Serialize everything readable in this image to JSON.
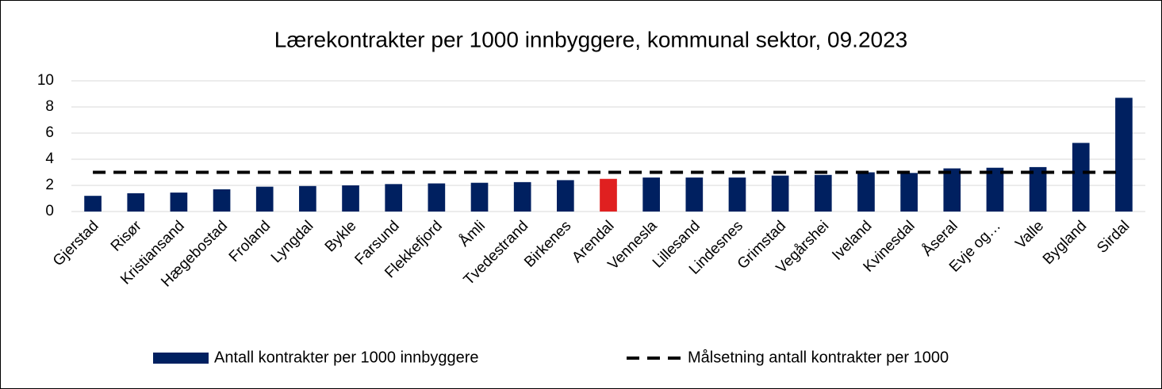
{
  "chart_data": {
    "type": "bar",
    "title": "Lærekontrakter per 1000 innbyggere, kommunal sektor, 09.2023",
    "categories": [
      "Gjerstad",
      "Risør",
      "Kristiansand",
      "Hægebostad",
      "Froland",
      "Lyngdal",
      "Bykle",
      "Farsund",
      "Flekkefjord",
      "Åmli",
      "Tvedestrand",
      "Birkenes",
      "Arendal",
      "Vennesla",
      "Lillesand",
      "Lindesnes",
      "Grimstad",
      "Vegårshei",
      "Iveland",
      "Kvinesdal",
      "Åseral",
      "Evje og…",
      "Valle",
      "Bygland",
      "Sirdal"
    ],
    "series": [
      {
        "name": "Antall kontrakter per 1000 innbyggere",
        "type": "bar",
        "color": "#002060",
        "colors": [
          "#002060",
          "#002060",
          "#002060",
          "#002060",
          "#002060",
          "#002060",
          "#002060",
          "#002060",
          "#002060",
          "#002060",
          "#002060",
          "#002060",
          "#e02020",
          "#002060",
          "#002060",
          "#002060",
          "#002060",
          "#002060",
          "#002060",
          "#002060",
          "#002060",
          "#002060",
          "#002060",
          "#002060",
          "#002060"
        ],
        "values": [
          1.2,
          1.4,
          1.45,
          1.7,
          1.9,
          1.95,
          2.0,
          2.1,
          2.15,
          2.2,
          2.25,
          2.4,
          2.5,
          2.6,
          2.6,
          2.6,
          2.75,
          2.8,
          3.0,
          2.95,
          3.3,
          3.35,
          3.4,
          5.25,
          8.7
        ]
      },
      {
        "name": "Målsetning antall kontrakter per 1000",
        "type": "line",
        "color": "#000000",
        "dashed": true,
        "values": [
          3,
          3,
          3,
          3,
          3,
          3,
          3,
          3,
          3,
          3,
          3,
          3,
          3,
          3,
          3,
          3,
          3,
          3,
          3,
          3,
          3,
          3,
          3,
          3,
          3
        ]
      }
    ],
    "ylim": [
      0,
      10
    ],
    "yticks": [
      0,
      2,
      4,
      6,
      8,
      10
    ],
    "grid": true,
    "legend": "bottom"
  }
}
